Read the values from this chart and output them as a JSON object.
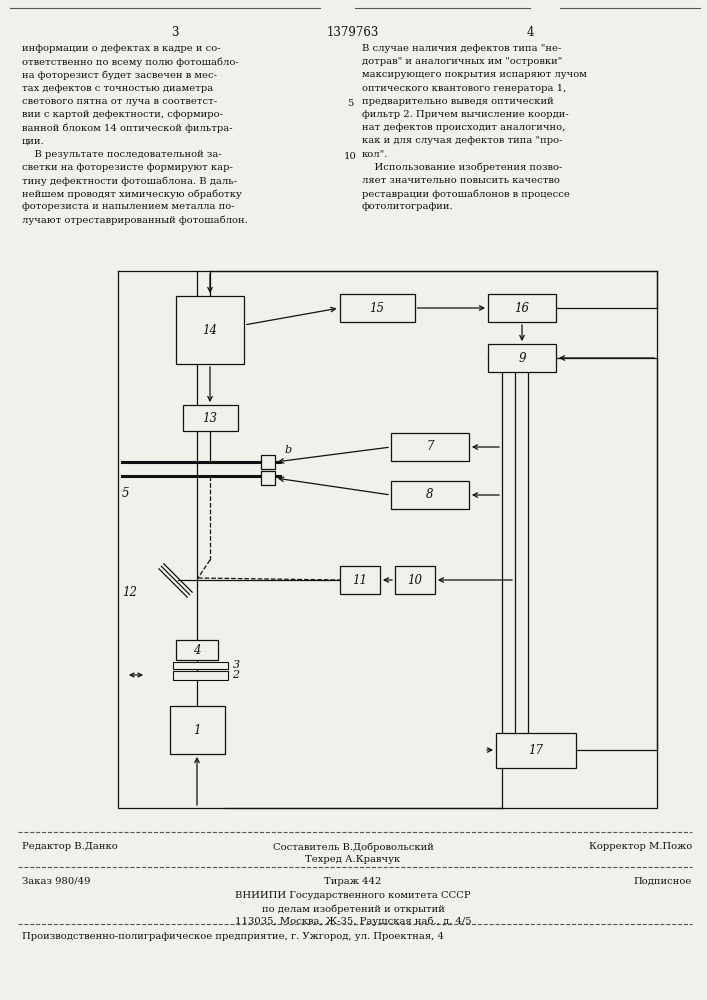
{
  "page_number_left": "3",
  "page_number_center": "1379763",
  "page_number_right": "4",
  "left_text_lines": [
    "информации о дефектах в кадре и со-",
    "ответственно по всему полю фотошабло-",
    "на фоторезист будет засвечен в мес-",
    "тах дефектов с точностью диаметра",
    "светового пятна от луча в соответст-",
    "вии с картой дефектности, сформиро-",
    "ванной блоком 14 оптической фильтра-",
    "ции.",
    "    В результате последовательной за-",
    "светки на фоторезисте формируют кар-",
    "тину дефектности фотошаблона. В даль-",
    "нейшем проводят химическую обработку",
    "фоторезиста и напылением металла по-",
    "лучают отреставрированный фотошаблон."
  ],
  "right_text_lines": [
    "В случае наличия дефектов типа \"не-",
    "дотрав\" и аналогичных им \"островки\"",
    "максирующего покрытия испаряют лучом",
    "оптического квантового генератора 1,",
    "предварительно выведя оптический",
    "фильтр 2. Причем вычисление коорди-",
    "нат дефектов происходит аналогично,",
    "как и для случая дефектов типа \"про-",
    "кол\".",
    "    Использование изобретения позво-",
    "ляет значительно повысить качество",
    "реставрации фотошаблонов в процессе",
    "фотолитографии."
  ],
  "line_num_5_row": 4,
  "line_num_10_row": 8,
  "editor_line": "Редактор В.Данко",
  "compiler_line": "Составитель В.Добровольский",
  "tech_line": "Техред А.Кравчук",
  "corrector_line": "Корректор М.Пожо",
  "order_line": "Заказ 980/49",
  "circulation_line": "Тираж 442",
  "subscription_line": "Подписное",
  "vnipi_line1": "ВНИИПИ Государственного комитета СССР",
  "vnipi_line2": "по делам изобретений и открытий",
  "vnipi_line3": "113035, Москва, Ж-35, Раушская наб., д. 4/5",
  "factory_line": "Производственно-полиграфическое предприятие, г. Ужгород, ул. Проектная, 4",
  "bg_color": "#f2f0eb",
  "text_color": "#111111",
  "box_bg": "#f2f0eb",
  "box_edge": "#111111",
  "header_line_color": "#555555",
  "sep_line_color": "#555555"
}
